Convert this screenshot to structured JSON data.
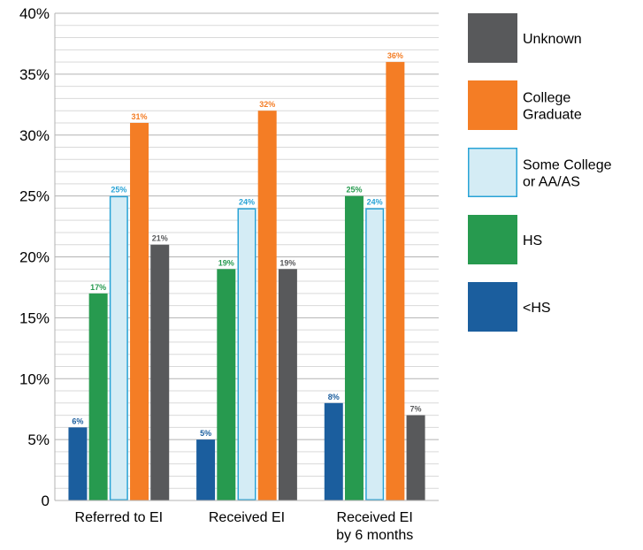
{
  "chart_data": {
    "type": "bar",
    "categories": [
      [
        "Referred to EI"
      ],
      [
        "Received EI"
      ],
      [
        "Received EI",
        "by 6 months"
      ]
    ],
    "series": [
      {
        "name": "<HS",
        "color": "#1b5e9e",
        "values": [
          6,
          5,
          8
        ]
      },
      {
        "name": "HS",
        "color": "#279a4f",
        "values": [
          17,
          19,
          25
        ]
      },
      {
        "name": "Some College or AA/AS",
        "legend_lines": [
          "Some College",
          "or AA/AS"
        ],
        "color": "#d4ecf5",
        "stroke": "#29a3d6",
        "values": [
          25,
          24,
          24
        ]
      },
      {
        "name": "College Graduate",
        "legend_lines": [
          "College",
          "Graduate"
        ],
        "color": "#f47d25",
        "values": [
          31,
          32,
          36
        ]
      },
      {
        "name": "Unknown",
        "color": "#58595b",
        "values": [
          21,
          19,
          7
        ]
      }
    ],
    "y_ticks": [
      "0",
      "5%",
      "10%",
      "15%",
      "20%",
      "25%",
      "30%",
      "35%",
      "40%"
    ],
    "ylim": [
      0,
      40
    ],
    "y_major_step": 5,
    "y_minor_step": 1,
    "value_suffix": "%",
    "label_colors": [
      "#1b5e9e",
      "#279a4f",
      "#29a3d6",
      "#f47d25",
      "#58595b"
    ],
    "legend_order": [
      "Unknown",
      "College Graduate",
      "Some College or AA/AS",
      "HS",
      "<HS"
    ],
    "grid": true,
    "legend_position": "right",
    "title": "",
    "xlabel": "",
    "ylabel": ""
  }
}
